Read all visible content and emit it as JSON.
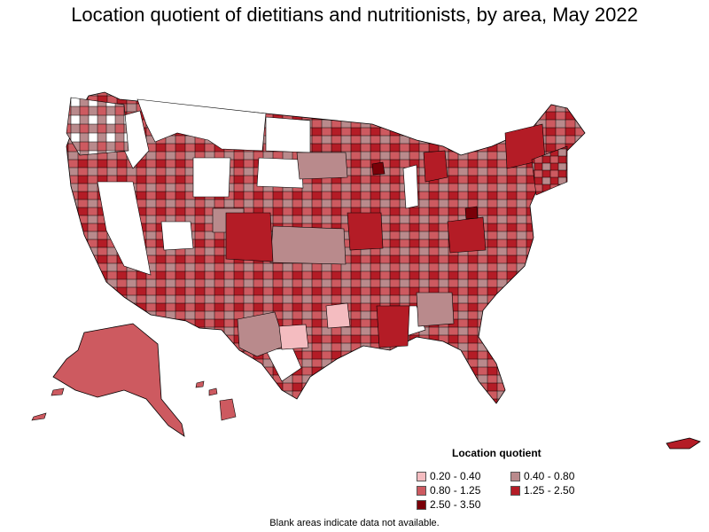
{
  "title": "Location quotient of dietitians and nutritionists, by area, May 2022",
  "legend": {
    "title": "Location quotient",
    "items": [
      {
        "label": "0.20 - 0.40",
        "color": "#f4bcc0"
      },
      {
        "label": "0.40 - 0.80",
        "color": "#b98a8c"
      },
      {
        "label": "0.80 - 1.25",
        "color": "#cd5a60"
      },
      {
        "label": "1.25 - 2.50",
        "color": "#b41c26"
      },
      {
        "label": "2.50 - 3.50",
        "color": "#7a0008"
      }
    ]
  },
  "footnote": "Blank areas indicate data not available.",
  "colors": {
    "very_low": "#f4bcc0",
    "low": "#b98a8c",
    "mid": "#cd5a60",
    "high": "#b41c26",
    "very_high": "#7a0008",
    "no_data": "#ffffff",
    "border": "#000000"
  }
}
